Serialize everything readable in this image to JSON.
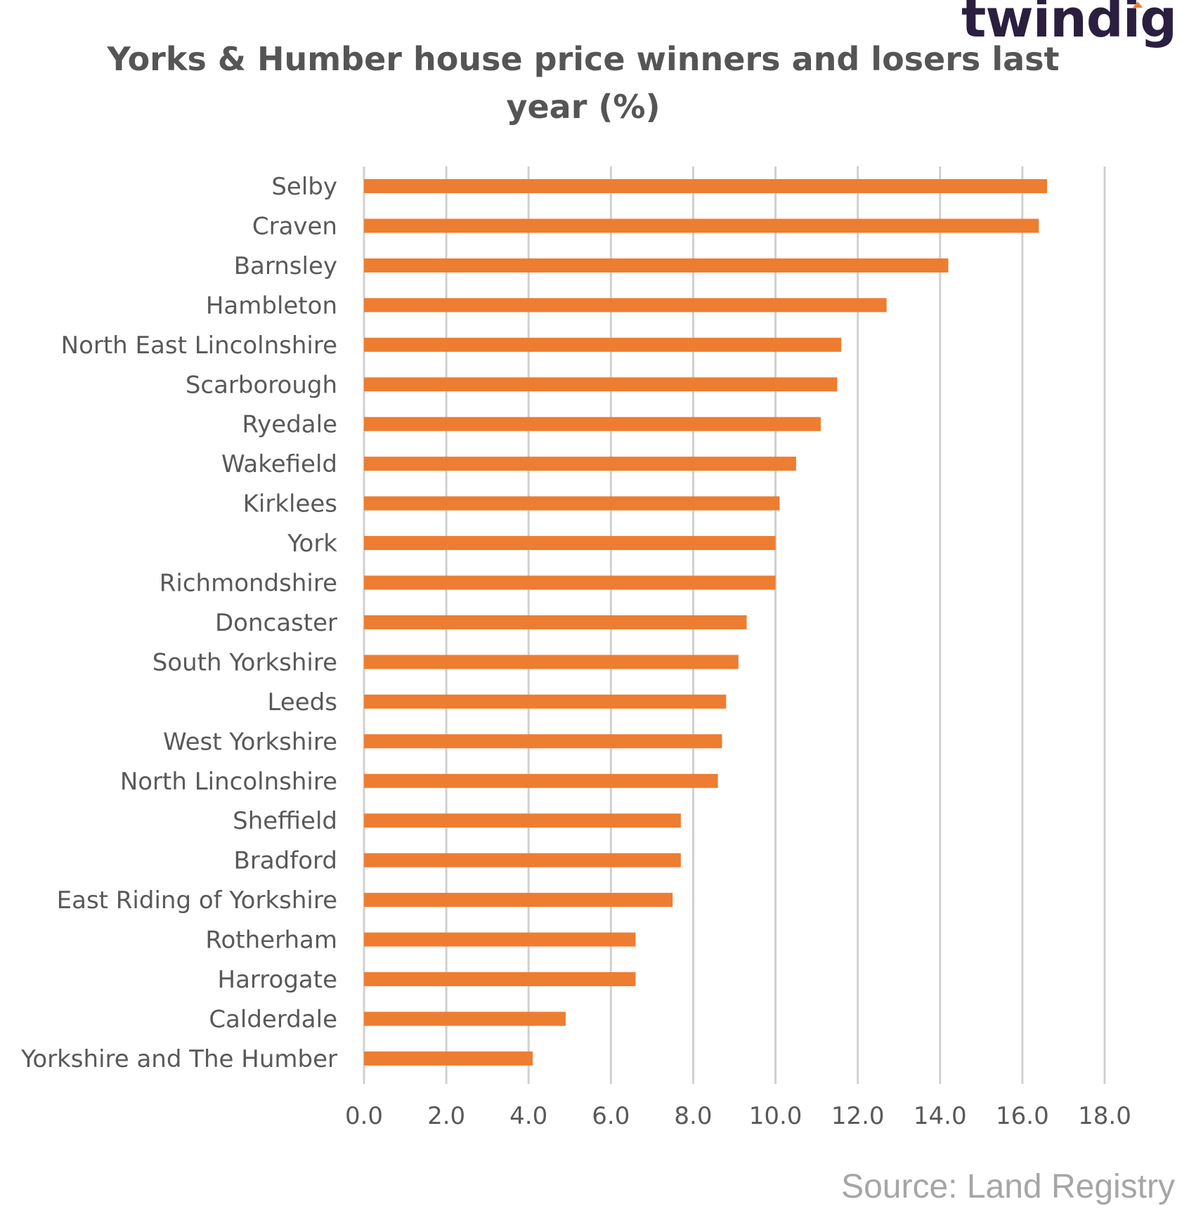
{
  "brand": {
    "logo_text": "twindig",
    "accent_color": "#f07c2e",
    "logo_color": "#2b1f3f"
  },
  "chart_data": {
    "type": "bar",
    "orientation": "horizontal",
    "title": "Yorks & Humber house price winners and losers last year (%)",
    "categories": [
      "Selby",
      "Craven",
      "Barnsley",
      "Hambleton",
      "North East Lincolnshire",
      "Scarborough",
      "Ryedale",
      "Wakefield",
      "Kirklees",
      "York",
      "Richmondshire",
      "Doncaster",
      "South Yorkshire",
      "Leeds",
      "West Yorkshire",
      "North Lincolnshire",
      "Sheffield",
      "Bradford",
      "East Riding of Yorkshire",
      "Rotherham",
      "Harrogate",
      "Calderdale",
      "Yorkshire and The Humber"
    ],
    "values": [
      16.6,
      16.4,
      14.2,
      12.7,
      11.6,
      11.5,
      11.1,
      10.5,
      10.1,
      10.0,
      10.0,
      9.3,
      9.1,
      8.8,
      8.7,
      8.6,
      7.7,
      7.7,
      7.5,
      6.6,
      6.6,
      4.9,
      4.1
    ],
    "xlim": [
      0,
      18
    ],
    "xticks": [
      "0.0",
      "2.0",
      "4.0",
      "6.0",
      "8.0",
      "10.0",
      "12.0",
      "14.0",
      "16.0",
      "18.0"
    ],
    "grid": "vertical",
    "bar_color": "#ed7d31"
  },
  "footer": {
    "source": "Source: Land Registry"
  }
}
